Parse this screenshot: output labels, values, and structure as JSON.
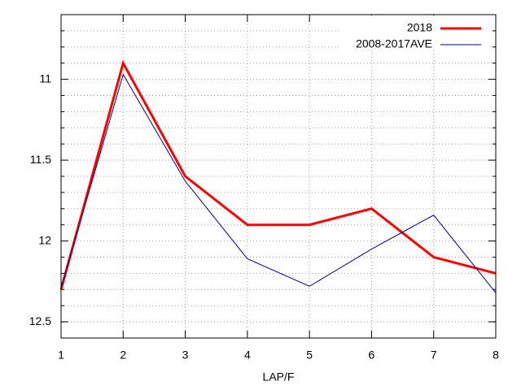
{
  "chart_data": {
    "type": "line",
    "x": [
      1,
      2,
      3,
      4,
      5,
      6,
      7,
      8
    ],
    "x_label": "LAP/F",
    "xlim": [
      1,
      8
    ],
    "xticks": [
      1,
      2,
      3,
      4,
      5,
      6,
      7,
      8
    ],
    "ylim": [
      12.6,
      10.6
    ],
    "yticks": [
      11,
      11.5,
      12,
      12.5
    ],
    "y_minor_ticks": [
      10.7,
      10.8,
      10.9,
      11.1,
      11.2,
      11.3,
      11.4,
      11.6,
      11.7,
      11.8,
      11.9,
      12.1,
      12.2,
      12.3,
      12.4,
      12.5
    ],
    "grid": true,
    "legend": "upper-right",
    "series": [
      {
        "name": "2018",
        "color": "#ff0000",
        "width": 3,
        "values": [
          12.3,
          10.9,
          11.6,
          11.9,
          11.9,
          11.8,
          12.1,
          12.2
        ]
      },
      {
        "name": "2008-2017AVE",
        "color": "#000080",
        "width": 1,
        "values": [
          12.29,
          10.97,
          11.63,
          12.11,
          12.28,
          12.05,
          11.84,
          12.32
        ]
      }
    ]
  }
}
